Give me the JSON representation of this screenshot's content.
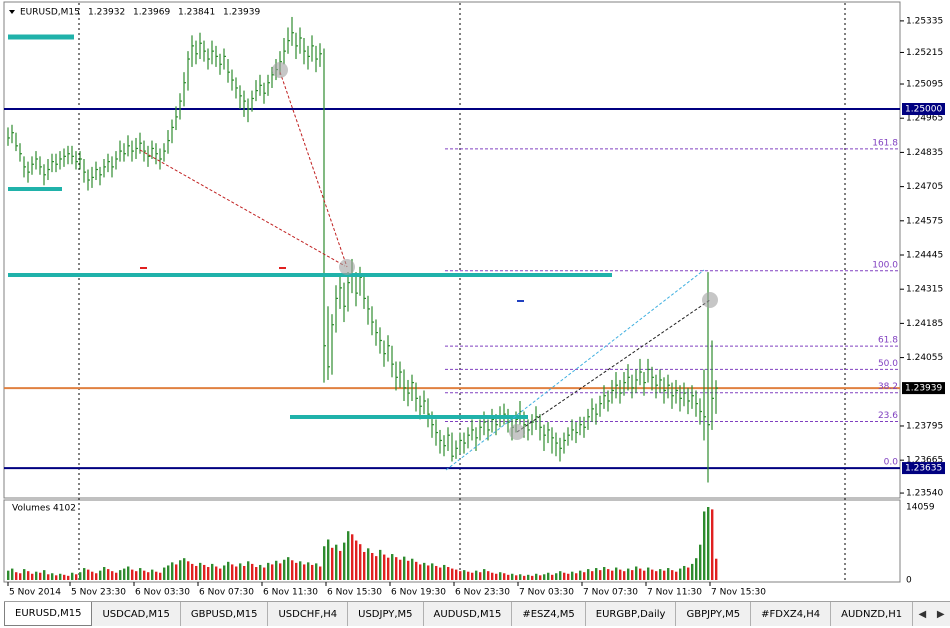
{
  "chart_data": {
    "type": "ohlc",
    "title": "EURUSD,M15",
    "header_values": [
      1.23932,
      1.23969,
      1.23841,
      1.23939
    ],
    "xlim": [
      -2,
      223
    ],
    "xticks": [
      {
        "value": 0,
        "label": "5 Nov 2014"
      },
      {
        "value": 15.5,
        "label": "5 Nov 23:30"
      },
      {
        "value": 31.5,
        "label": "6 Nov 03:30"
      },
      {
        "value": 47.5,
        "label": "6 Nov 07:30"
      },
      {
        "value": 63.5,
        "label": "6 Nov 11:30"
      },
      {
        "value": 79.5,
        "label": "6 Nov 15:30"
      },
      {
        "value": 95.5,
        "label": "6 Nov 19:30"
      },
      {
        "value": 111.5,
        "label": "6 Nov 23:30"
      },
      {
        "value": 127.5,
        "label": "7 Nov 03:30"
      },
      {
        "value": 143.5,
        "label": "7 Nov 07:30"
      },
      {
        "value": 159.5,
        "label": "7 Nov 11:30"
      },
      {
        "value": 175.5,
        "label": "7 Nov 15:30"
      }
    ],
    "ylim": [
      1.23525,
      1.25403
    ],
    "yticks": [
      1.25335,
      1.25215,
      1.25095,
      1.24965,
      1.24835,
      1.24705,
      1.24575,
      1.24445,
      1.24315,
      1.24185,
      1.24055,
      1.23795,
      1.23665,
      {
        "value": 1.2354,
        "label": "1.23540"
      }
    ],
    "color": "#2e8b2e",
    "high": [
      1.2493,
      1.2494,
      1.2491,
      1.2487,
      1.2482,
      1.248,
      1.2482,
      1.2484,
      1.2482,
      1.2479,
      1.2481,
      1.2483,
      1.2483,
      1.2484,
      1.2485,
      1.2486,
      1.2486,
      1.2484,
      1.2484,
      1.2481,
      1.2477,
      1.2478,
      1.248,
      1.2478,
      1.2481,
      1.2483,
      1.2482,
      1.2484,
      1.2488,
      1.2487,
      1.249,
      1.2488,
      1.2489,
      1.2491,
      1.2488,
      1.2486,
      1.2488,
      1.2487,
      1.2485,
      1.2487,
      1.2492,
      1.2496,
      1.2501,
      1.2506,
      1.2514,
      1.2522,
      1.2528,
      1.2526,
      1.2529,
      1.2526,
      1.2523,
      1.2526,
      1.2524,
      1.2521,
      1.2523,
      1.2519,
      1.2515,
      1.2512,
      1.2509,
      1.2507,
      1.2504,
      1.2507,
      1.2511,
      1.2513,
      1.251,
      1.2513,
      1.2516,
      1.2519,
      1.2522,
      1.2527,
      1.2531,
      1.2535,
      1.2529,
      1.2531,
      1.2527,
      1.2524,
      1.2528,
      1.2524,
      1.2525,
      1.2523,
      1.2425,
      1.2422,
      1.2433,
      1.2437,
      1.2434,
      1.2438,
      1.2443,
      1.2438,
      1.244,
      1.2437,
      1.2429,
      1.2425,
      1.242,
      1.2417,
      1.2412,
      1.2414,
      1.241,
      1.2404,
      1.2404,
      1.2401,
      1.2397,
      1.2399,
      1.2396,
      1.2391,
      1.2393,
      1.239,
      1.2385,
      1.2382,
      1.2378,
      1.2376,
      1.2379,
      1.2377,
      1.2374,
      1.2377,
      1.2377,
      1.2379,
      1.2382,
      1.2379,
      1.2382,
      1.2385,
      1.2382,
      1.2386,
      1.2384,
      1.2387,
      1.2388,
      1.2386,
      1.2383,
      1.2385,
      1.2389,
      1.2385,
      1.2382,
      1.2384,
      1.2387,
      1.2384,
      1.238,
      1.2381,
      1.2379,
      1.2377,
      1.2375,
      1.2377,
      1.2379,
      1.2382,
      1.2381,
      1.2383,
      1.2383,
      1.2386,
      1.239,
      1.2388,
      1.2391,
      1.2395,
      1.2393,
      1.2397,
      1.24,
      1.2397,
      1.24,
      1.2403,
      1.2399,
      1.2401,
      1.2405,
      1.24,
      1.2405,
      1.2402,
      1.2399,
      1.2401,
      1.2398,
      1.2399,
      1.2396,
      1.2397,
      1.2395,
      1.2396,
      1.2394,
      1.2395,
      1.2393,
      1.239,
      1.2401,
      1.2438,
      1.2412,
      1.23969
    ],
    "low": [
      1.2486,
      1.2487,
      1.2484,
      1.248,
      1.2474,
      1.2472,
      1.2475,
      1.2477,
      1.2475,
      1.2471,
      1.2473,
      1.2476,
      1.2476,
      1.2477,
      1.2478,
      1.2479,
      1.2479,
      1.2477,
      1.2477,
      1.2472,
      1.2469,
      1.247,
      1.2473,
      1.2471,
      1.2474,
      1.2476,
      1.2474,
      1.2477,
      1.248,
      1.248,
      1.2482,
      1.248,
      1.2481,
      1.2483,
      1.248,
      1.2478,
      1.2481,
      1.2479,
      1.2477,
      1.248,
      1.2483,
      1.2487,
      1.2492,
      1.2496,
      1.2501,
      1.2507,
      1.2516,
      1.2517,
      1.2519,
      1.2518,
      1.2515,
      1.2517,
      1.2516,
      1.2513,
      1.2515,
      1.251,
      1.2507,
      1.2504,
      1.25,
      1.2497,
      1.2495,
      1.2499,
      1.2503,
      1.2505,
      1.2502,
      1.2505,
      1.2508,
      1.2511,
      1.2513,
      1.2517,
      1.2521,
      1.2524,
      1.2519,
      1.2521,
      1.2517,
      1.2515,
      1.2518,
      1.2514,
      1.2516,
      1.2396,
      1.2397,
      1.2399,
      1.2415,
      1.2424,
      1.2419,
      1.2423,
      1.243,
      1.2425,
      1.2429,
      1.2424,
      1.2418,
      1.2414,
      1.241,
      1.2407,
      1.2402,
      1.2404,
      1.2398,
      1.2393,
      1.2394,
      1.2389,
      1.2387,
      1.2389,
      1.2385,
      1.2382,
      1.2384,
      1.2379,
      1.2375,
      1.2372,
      1.2369,
      1.2368,
      1.237,
      1.2366,
      1.2367,
      1.2369,
      1.2369,
      1.2371,
      1.2374,
      1.237,
      1.2374,
      1.2376,
      1.2374,
      1.2377,
      1.2376,
      1.2379,
      1.238,
      1.2377,
      1.2374,
      1.2377,
      1.238,
      1.2375,
      1.2374,
      1.2376,
      1.2378,
      1.2374,
      1.237,
      1.2373,
      1.2369,
      1.2368,
      1.2366,
      1.2369,
      1.2372,
      1.2374,
      1.2373,
      1.2376,
      1.2375,
      1.2378,
      1.2381,
      1.238,
      1.2383,
      1.2386,
      1.2385,
      1.2388,
      1.239,
      1.2388,
      1.2391,
      1.2393,
      1.239,
      1.2392,
      1.2395,
      1.2391,
      1.2396,
      1.2393,
      1.239,
      1.2392,
      1.2388,
      1.239,
      1.2386,
      1.2388,
      1.2385,
      1.2387,
      1.2384,
      1.2386,
      1.2383,
      1.238,
      1.2374,
      1.2358,
      1.2378,
      1.23841
    ],
    "close": [
      1.2489,
      1.2491,
      1.2486,
      1.2483,
      1.2478,
      1.2476,
      1.2479,
      1.2481,
      1.2478,
      1.2475,
      1.2477,
      1.248,
      1.2479,
      1.2481,
      1.2482,
      1.2483,
      1.2482,
      1.248,
      1.2481,
      1.2476,
      1.2473,
      1.2474,
      1.2477,
      1.2475,
      1.2478,
      1.248,
      1.2478,
      1.2481,
      1.2484,
      1.2483,
      1.2486,
      1.2484,
      1.2485,
      1.2487,
      1.2484,
      1.2482,
      1.2485,
      1.2483,
      1.2481,
      1.2484,
      1.2488,
      1.2493,
      1.2497,
      1.2503,
      1.251,
      1.2519,
      1.2524,
      1.2521,
      1.2525,
      1.2522,
      1.2519,
      1.2522,
      1.252,
      1.2517,
      1.252,
      1.2514,
      1.2511,
      1.2508,
      1.2505,
      1.2503,
      1.25,
      1.2504,
      1.2507,
      1.2509,
      1.2506,
      1.251,
      1.2513,
      1.2515,
      1.2518,
      1.2522,
      1.2526,
      1.2529,
      1.2524,
      1.2527,
      1.2522,
      1.252,
      1.2524,
      1.2519,
      1.2521,
      1.241,
      1.2402,
      1.2418,
      1.2428,
      1.2432,
      1.2425,
      1.2434,
      1.2437,
      1.243,
      1.2436,
      1.2428,
      1.2424,
      1.2419,
      1.2415,
      1.2412,
      1.2407,
      1.241,
      1.2403,
      1.2398,
      1.24,
      1.2394,
      1.2392,
      1.2396,
      1.239,
      1.2387,
      1.2389,
      1.2384,
      1.238,
      1.2377,
      1.2374,
      1.2372,
      1.2376,
      1.2368,
      1.2371,
      1.2374,
      1.2373,
      1.2376,
      1.2378,
      1.2375,
      1.2379,
      1.2381,
      1.2378,
      1.2382,
      1.238,
      1.2383,
      1.2384,
      1.2381,
      1.2379,
      1.2382,
      1.2385,
      1.238,
      1.2378,
      1.2381,
      1.2383,
      1.2379,
      1.2376,
      1.2378,
      1.2375,
      1.2373,
      1.2371,
      1.2374,
      1.2376,
      1.2378,
      1.2377,
      1.238,
      1.2379,
      1.2383,
      1.2386,
      1.2384,
      1.2388,
      1.2391,
      1.2389,
      1.2393,
      1.2395,
      1.2392,
      1.2396,
      1.2398,
      1.2394,
      1.2397,
      1.24,
      1.2396,
      1.2401,
      1.2398,
      1.2395,
      1.2397,
      1.2393,
      1.2395,
      1.2391,
      1.2393,
      1.239,
      1.2392,
      1.2389,
      1.2391,
      1.2388,
      1.2385,
      1.2383,
      1.238,
      1.239,
      1.23939
    ],
    "price_lines": [
      {
        "value": 1.25,
        "label": "1.25000",
        "color": "#000080",
        "box": "#000080"
      },
      {
        "value": 1.23939,
        "label": "1.23939",
        "color": "#e08040",
        "box": "#000000"
      },
      {
        "value": 1.23635,
        "label": "1.23635",
        "color": "#000080",
        "box": "#000080"
      }
    ],
    "fibo": {
      "low": 1.23635,
      "high": 1.24385,
      "color": "#8040c0",
      "levels": [
        161.8,
        {
          "value": 100,
          "label": "100.0"
        },
        61.8,
        {
          "value": 50,
          "label": "50.0"
        },
        38.2,
        23.6,
        {
          "value": 0,
          "label": "0.0"
        }
      ]
    },
    "volume_title": "Volumes 4102",
    "volume_up_color": "#2e8b2e",
    "volume_down_color": "#e02020",
    "volume_ylim": [
      0,
      14059
    ],
    "volume_yticks": [
      14059,
      0
    ],
    "volumes": [
      1800,
      2200,
      1500,
      1300,
      2100,
      1700,
      1200,
      1600,
      1400,
      1900,
      1100,
      1300,
      900,
      1200,
      1000,
      800,
      1400,
      1100,
      1500,
      2300,
      2000,
      1600,
      1300,
      1800,
      2500,
      2100,
      1700,
      1400,
      1900,
      2200,
      2600,
      2000,
      1700,
      2300,
      1800,
      1500,
      2000,
      1600,
      1400,
      2400,
      2800,
      3400,
      3000,
      3800,
      4200,
      3600,
      3100,
      2700,
      3300,
      2900,
      2500,
      3100,
      2600,
      2200,
      2800,
      3500,
      3000,
      2600,
      3200,
      2700,
      3600,
      3100,
      2500,
      2900,
      2400,
      3300,
      3000,
      3700,
      3200,
      3900,
      4400,
      3800,
      3300,
      3600,
      3000,
      3400,
      2900,
      3200,
      2600,
      6500,
      7800,
      6200,
      6800,
      5600,
      7200,
      9400,
      8800,
      7600,
      6900,
      5400,
      6100,
      5200,
      4600,
      5800,
      4900,
      4300,
      5000,
      4400,
      3900,
      4500,
      3700,
      4100,
      3500,
      3000,
      3300,
      2800,
      3200,
      2700,
      2400,
      2900,
      2500,
      2200,
      2000,
      1700,
      1900,
      1600,
      1400,
      1800,
      1500,
      2100,
      1700,
      1400,
      1200,
      1500,
      1300,
      1000,
      1200,
      900,
      1100,
      800,
      1000,
      800,
      1200,
      900,
      1100,
      1400,
      1000,
      1300,
      1700,
      1400,
      1200,
      1600,
      1300,
      1800,
      1500,
      2100,
      1700,
      2300,
      1900,
      2500,
      2100,
      1800,
      2400,
      2000,
      1700,
      2200,
      1900,
      2600,
      2200,
      1800,
      2400,
      2000,
      1700,
      2100,
      1800,
      2300,
      1900,
      1600,
      2200,
      2700,
      2400,
      3100,
      4200,
      6800,
      13200,
      14059,
      13600,
      4102
    ]
  },
  "tabs": [
    "EURUSD,M15",
    "USDCAD,M15",
    "GBPUSD,M15",
    "USDCHF,H4",
    "USDJPY,M5",
    "AUDUSD,M15",
    "#ESZ4,M5",
    "EURGBP,Daily",
    "GBPJPY,M5",
    "#FDXZ4,H4",
    "AUDNZD,H1"
  ]
}
